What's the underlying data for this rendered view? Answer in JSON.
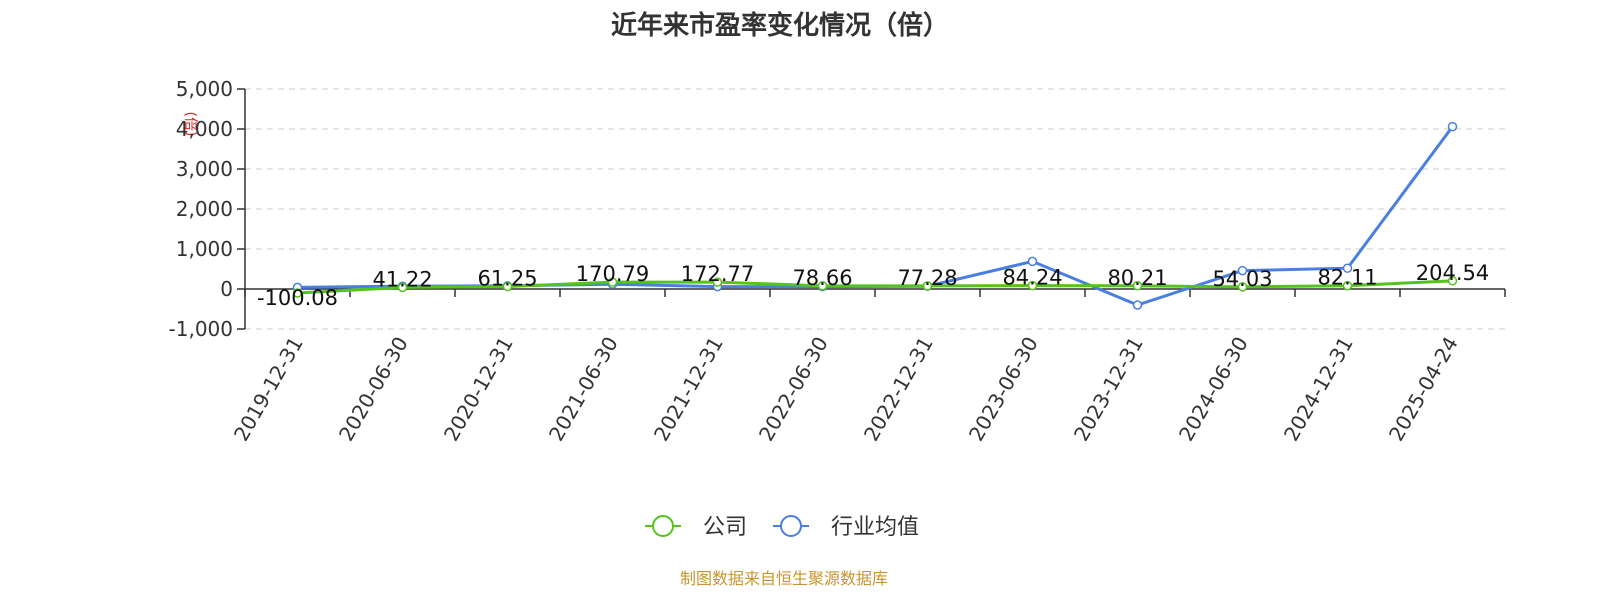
{
  "chart_data": {
    "type": "line",
    "title": "近年来市盈率变化情况（倍）",
    "xlabel": "",
    "ylabel": "",
    "categories": [
      "2019-12-31",
      "2020-06-30",
      "2020-12-31",
      "2021-06-30",
      "2021-12-31",
      "2022-06-30",
      "2022-12-31",
      "2023-06-30",
      "2023-12-31",
      "2024-06-30",
      "2024-12-31",
      "2025-04-24"
    ],
    "ylim": [
      -1000,
      5000
    ],
    "yticks": [
      5000,
      4000,
      3000,
      2000,
      1000,
      0,
      -1000
    ],
    "ytick_labels": [
      "5,000",
      "4,000",
      "3,000",
      "2,000",
      "1,000",
      "0",
      "-1,000"
    ],
    "grid": true,
    "legend_position": "bottom",
    "series": [
      {
        "name": "公司",
        "color": "#52c41a",
        "values": [
          -100.08,
          41.22,
          61.25,
          170.79,
          172.77,
          78.66,
          77.28,
          84.24,
          80.21,
          54.03,
          82.11,
          204.54
        ],
        "labels": [
          "-100.08",
          "41.22",
          "61.25",
          "170.79",
          "172.77",
          "78.66",
          "77.28",
          "84.24",
          "80.21",
          "54.03",
          "82.11",
          "204.54"
        ]
      },
      {
        "name": "行业均值",
        "color": "#4a7fe0",
        "values": [
          40,
          70,
          80,
          120,
          60,
          60,
          70,
          690,
          -400,
          460,
          520,
          4060
        ]
      }
    ]
  },
  "footer": {
    "source": "制图数据来自恒生聚源数据库"
  },
  "watermark": "(倍)"
}
